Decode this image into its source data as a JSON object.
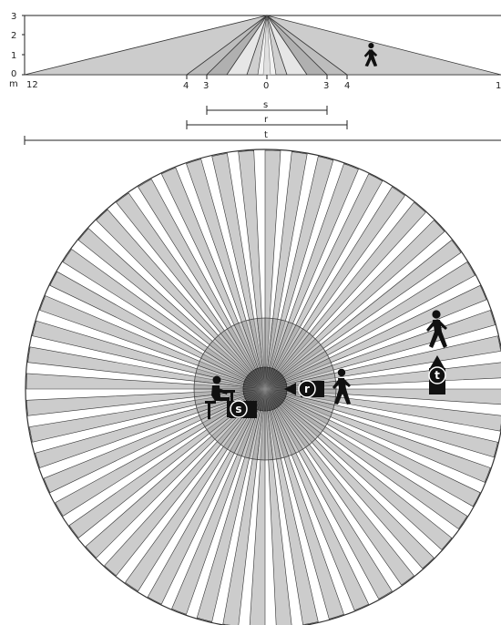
{
  "side_view": {
    "y_ticks": [
      "3",
      "2",
      "1",
      "0"
    ],
    "unit_label": "m",
    "x_ticks": {
      "left_edge": "12",
      "right_edge": "1",
      "left_4": "4",
      "left_3": "3",
      "center": "0",
      "right_3": "3",
      "right_4": "4"
    }
  },
  "ranges": [
    {
      "key": "s",
      "label": "s"
    },
    {
      "key": "r",
      "label": "r"
    },
    {
      "key": "t",
      "label": "t"
    }
  ],
  "top_view": {
    "badges": {
      "s": "s",
      "r": "r",
      "t": "t"
    }
  },
  "colors": {
    "sector_fill": "#cccccc",
    "outline": "#333333",
    "inner_zone": "#999999",
    "center_zone": "#555555",
    "dark": "#111111"
  },
  "icons": [
    "walking-person-icon",
    "seated-person-icon",
    "arrow-left-icon",
    "arrow-up-icon"
  ]
}
